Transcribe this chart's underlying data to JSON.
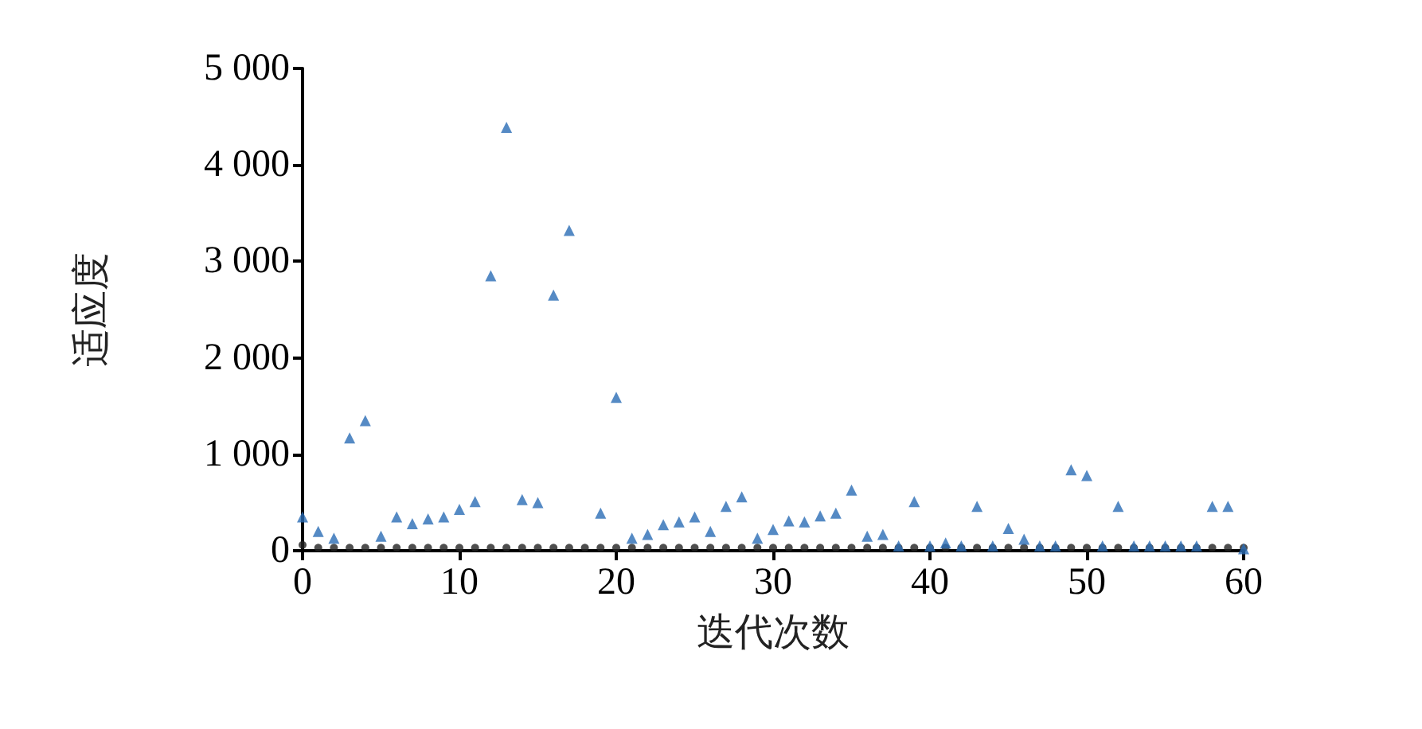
{
  "chart_data": {
    "type": "scatter",
    "xlabel": "迭代次数",
    "ylabel": "适应度",
    "xlim": [
      0,
      60
    ],
    "xticks": [
      0,
      10,
      20,
      30,
      40,
      50,
      60
    ],
    "ylim": [
      0,
      5000
    ],
    "yticks": [
      0,
      {
        "value": 1000,
        "label": "1 000"
      },
      {
        "value": 2000,
        "label": "2 000"
      },
      {
        "value": 3000,
        "label": "3 000"
      },
      {
        "value": 4000,
        "label": "4 000"
      },
      {
        "value": 5000,
        "label": "5 000"
      }
    ],
    "grid": false,
    "series": [
      {
        "color": "#2a6db5",
        "marker": "triangle",
        "x": [
          0,
          1,
          2,
          3,
          4,
          5,
          6,
          7,
          8,
          9,
          10,
          11,
          12,
          13,
          14,
          15,
          16,
          17,
          19,
          20,
          21,
          22,
          23,
          24,
          25,
          26,
          27,
          28,
          29,
          30,
          31,
          32,
          33,
          34,
          35,
          36,
          37,
          38,
          39,
          40,
          41,
          42,
          43,
          44,
          45,
          46,
          47,
          48,
          49,
          50,
          51,
          52,
          53,
          54,
          55,
          56,
          57,
          58,
          59,
          60
        ],
        "values": [
          350,
          200,
          130,
          1170,
          1350,
          150,
          350,
          280,
          330,
          350,
          430,
          510,
          2850,
          4390,
          530,
          500,
          2650,
          3320,
          390,
          1590,
          130,
          170,
          270,
          300,
          350,
          200,
          460,
          560,
          130,
          220,
          310,
          300,
          360,
          390,
          630,
          150,
          170,
          50,
          510,
          50,
          80,
          50,
          460,
          50,
          230,
          120,
          50,
          50,
          840,
          780,
          50,
          460,
          50,
          50,
          50,
          50,
          50,
          460,
          460,
          20
        ]
      },
      {
        "color": "#222222",
        "marker": "circle",
        "x": [
          0,
          1,
          2,
          3,
          4,
          5,
          6,
          7,
          8,
          9,
          10,
          11,
          12,
          13,
          14,
          15,
          16,
          17,
          18,
          19,
          20,
          21,
          22,
          23,
          24,
          25,
          26,
          27,
          28,
          29,
          30,
          31,
          32,
          33,
          34,
          35,
          36,
          37,
          38,
          39,
          40,
          41,
          42,
          43,
          44,
          45,
          46,
          47,
          48,
          49,
          50,
          51,
          52,
          53,
          54,
          55,
          56,
          57,
          58,
          59,
          60
        ],
        "values": [
          60,
          30,
          30,
          30,
          30,
          30,
          30,
          30,
          30,
          30,
          30,
          30,
          30,
          30,
          30,
          30,
          30,
          30,
          30,
          30,
          30,
          30,
          30,
          30,
          30,
          30,
          30,
          30,
          30,
          30,
          30,
          30,
          30,
          30,
          30,
          30,
          30,
          30,
          30,
          30,
          30,
          30,
          30,
          30,
          30,
          30,
          30,
          30,
          30,
          30,
          30,
          30,
          30,
          30,
          30,
          30,
          30,
          30,
          30,
          30,
          30
        ]
      }
    ]
  }
}
